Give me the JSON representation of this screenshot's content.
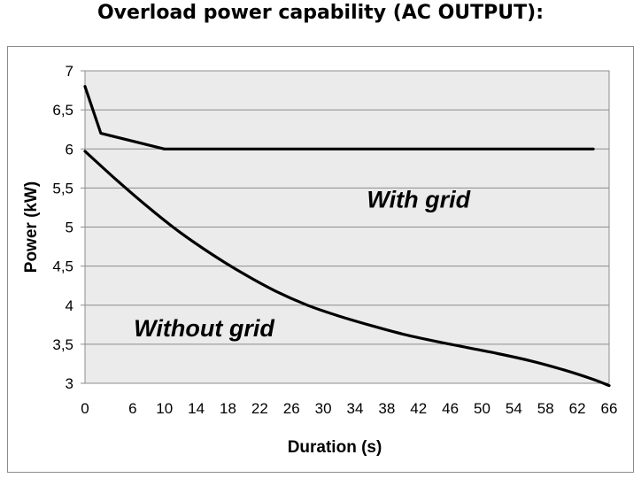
{
  "chart_data": {
    "type": "line",
    "title": "Overload power capability (AC OUTPUT):",
    "xlabel": "Duration (s)",
    "ylabel": "Power (kW)",
    "xlim": [
      0,
      66
    ],
    "ylim": [
      3,
      7
    ],
    "x_ticks": [
      0,
      6,
      10,
      14,
      18,
      22,
      26,
      30,
      34,
      38,
      42,
      46,
      50,
      54,
      58,
      62,
      66
    ],
    "y_ticks": [
      "3",
      "3,5",
      "4",
      "4,5",
      "5",
      "5,5",
      "6",
      "6,5",
      "7"
    ],
    "y_tick_values": [
      3,
      3.5,
      4,
      4.5,
      5,
      5.5,
      6,
      6.5,
      7
    ],
    "grid": "horizontal",
    "plot_background": "#ebebeb",
    "line_color": "#000000",
    "series": [
      {
        "name": "With grid",
        "x": [
          0,
          2,
          6,
          10,
          20,
          30,
          40,
          50,
          60,
          64
        ],
        "y": [
          6.8,
          6.2,
          6.1,
          6.0,
          6.0,
          6.0,
          6.0,
          6.0,
          6.0,
          6.0
        ]
      },
      {
        "name": "Without grid",
        "x": [
          0,
          4,
          8,
          12,
          16,
          20,
          24,
          28,
          32,
          36,
          40,
          44,
          48,
          52,
          56,
          60,
          64,
          66
        ],
        "y": [
          5.97,
          5.6,
          5.25,
          4.93,
          4.65,
          4.4,
          4.18,
          4.0,
          3.86,
          3.74,
          3.63,
          3.54,
          3.46,
          3.38,
          3.29,
          3.18,
          3.05,
          2.97
        ]
      }
    ],
    "annotations": [
      {
        "text": "With grid",
        "x": 42,
        "y": 5.25
      },
      {
        "text": "Without grid",
        "x": 15,
        "y": 3.6
      }
    ]
  }
}
